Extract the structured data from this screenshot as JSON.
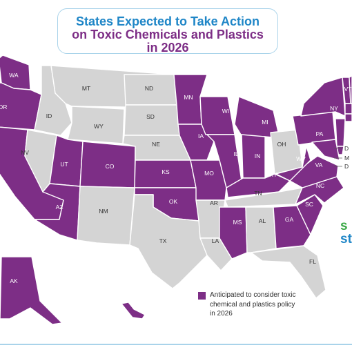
{
  "title": {
    "line1": "States Expected to Take Action",
    "line2": "on Toxic Chemicals and Plastics",
    "line3": "in 2026"
  },
  "legend": {
    "text": "Anticipated to consider toxic chemical and plastics policy in 2026",
    "color": "#7d2e86"
  },
  "colors": {
    "action": "#7d2e86",
    "other": "#d4d4d4",
    "border": "#ffffff",
    "title_blue": "#1f86c7"
  },
  "brand": {
    "line1": "s",
    "line2": "st"
  },
  "state_labels": {
    "WA": "WA",
    "OR": "OR",
    "MT": "MT",
    "ID": "ID",
    "WY": "WY",
    "ND": "ND",
    "SD": "SD",
    "NE": "NE",
    "NV": "NV",
    "UT": "UT",
    "CO": "CO",
    "KS": "KS",
    "AZ": "AZ",
    "NM": "NM",
    "OK": "OK",
    "TX": "TX",
    "MN": "MN",
    "IA": "IA",
    "MO": "MO",
    "AR": "AR",
    "LA": "LA",
    "WI": "WI",
    "IL": "IL",
    "MS": "MS",
    "MI": "MI",
    "IN": "IN",
    "KY": "KY",
    "TN": "TN",
    "AL": "AL",
    "OH": "OH",
    "WV": "WV",
    "VA": "VA",
    "NC": "NC",
    "SC": "SC",
    "GA": "GA",
    "FL": "FL",
    "PA": "PA",
    "NY": "NY",
    "VT": "VT",
    "AK": "AK",
    "HI": "HI"
  },
  "east_labels": [
    "D",
    "M",
    "D"
  ],
  "action_states": [
    "WA",
    "OR",
    "CA",
    "UT",
    "CO",
    "AZ",
    "KS",
    "OK",
    "MN",
    "IA",
    "MO",
    "WI",
    "IL",
    "MI",
    "IN",
    "KY",
    "WV",
    "VA",
    "NC",
    "SC",
    "GA",
    "MS",
    "PA",
    "NY",
    "VT",
    "NH",
    "ME",
    "MA",
    "CT",
    "RI",
    "NJ",
    "DE",
    "MD",
    "AK",
    "HI"
  ]
}
